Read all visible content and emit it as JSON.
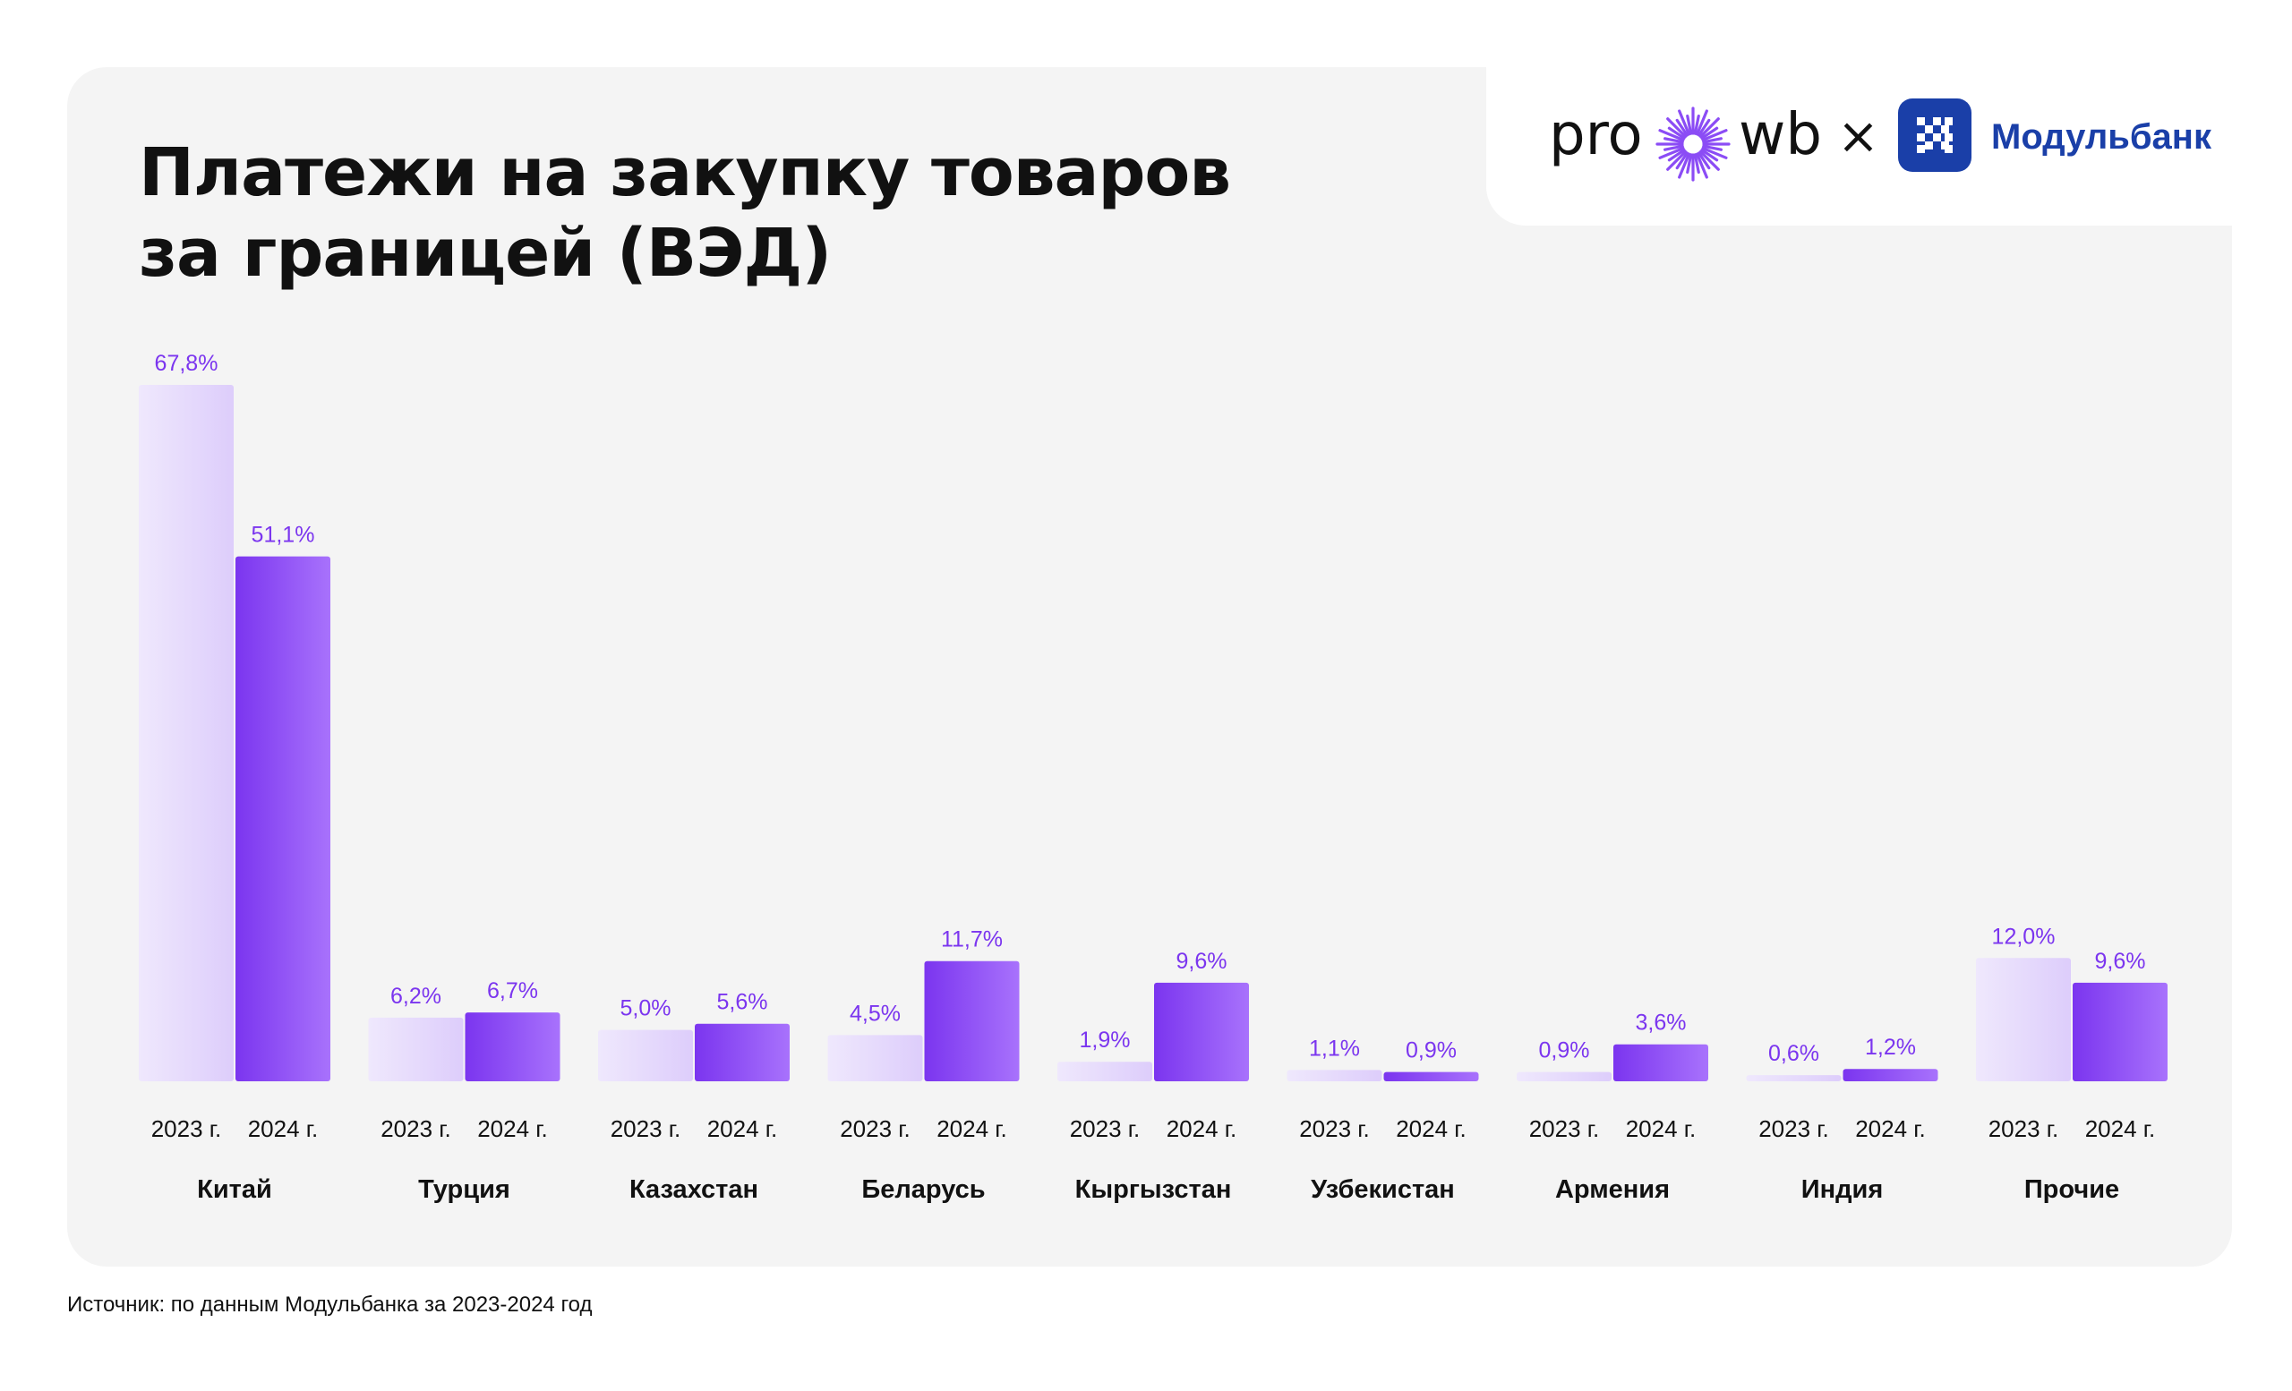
{
  "title_line1": "Платежи на закупку товаров",
  "title_line2": "за границей (ВЭД)",
  "logo": {
    "pro": "pro",
    "wb": "wb",
    "separator": "×",
    "bank": "Модульбанк"
  },
  "source": "Источник: по данным Модульбанка за 2023-2024 год",
  "colors": {
    "bar_2023_light": "#efe8fd",
    "bar_2023_mid": "#ddcdfb",
    "bar_2024_dark": "#7b35ef",
    "bar_2024_light": "#a872fc",
    "label_purple": "#7b35ef",
    "panel_bg": "#f4f4f4",
    "bank_blue": "#1a3fa8"
  },
  "chart_data": {
    "type": "bar",
    "title": "Платежи на закупку товаров за границей (ВЭД)",
    "categories": [
      "Китай",
      "Турция",
      "Казахстан",
      "Беларусь",
      "Кыргызстан",
      "Узбекистан",
      "Армения",
      "Индия",
      "Прочие"
    ],
    "series": [
      {
        "name": "2023 г.",
        "values": [
          67.8,
          6.2,
          5.0,
          4.5,
          1.9,
          1.1,
          0.9,
          0.6,
          12.0
        ],
        "labels": [
          "67,8%",
          "6,2%",
          "5,0%",
          "4,5%",
          "1,9%",
          "1,1%",
          "0,9%",
          "0,6%",
          "12,0%"
        ]
      },
      {
        "name": "2024 г.",
        "values": [
          51.1,
          6.7,
          5.6,
          11.7,
          9.6,
          0.9,
          3.6,
          1.2,
          9.6
        ],
        "labels": [
          "51,1%",
          "6,7%",
          "5,6%",
          "11,7%",
          "9,6%",
          "0,9%",
          "3,6%",
          "1,2%",
          "9,6%"
        ]
      }
    ],
    "unit": "%",
    "ylim": [
      0,
      67.8
    ],
    "grid": false,
    "legend": "none"
  }
}
